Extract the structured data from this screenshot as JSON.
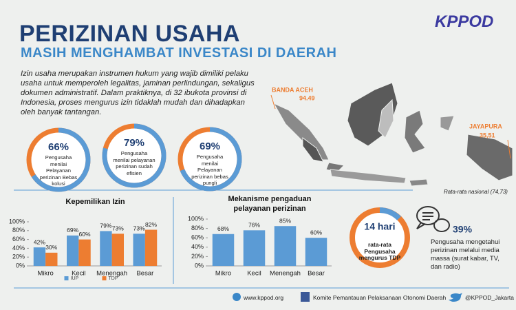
{
  "header": {
    "title": "PERIZINAN USAHA",
    "subtitle": "MASIH MENGHAMBAT INVESTASI DI DAERAH",
    "logo": "KPPOD"
  },
  "intro": "Izin usaha merupakan instrumen hukum yang wajib dimiliki pelaku usaha untuk memperoleh legalitas, jaminan perlindungan, sekaligus dokumen administratif. Dalam praktiknya, di 32 ibukota provinsi di Indonesia, proses mengurus izin tidaklah mudah dan dihadapkan oleh banyak tantangan.",
  "indicators": {
    "values": [
      66,
      79,
      69
    ],
    "value_labels": [
      "66%",
      "79%",
      "69%"
    ],
    "captions": [
      "Pengusaha menilai Pelayanan perizinan Bebas kolusi",
      "Pengusaha menilai pelayanan perizinan sudah efisien",
      "Pengusaha menilai Pelayanan perizinan bebas pungli"
    ]
  },
  "map": {
    "banda_aceh": {
      "name": "BANDA ACEH",
      "value": "94.49"
    },
    "jayapura": {
      "name": "JAYAPURA",
      "value": "35,51"
    },
    "note": "Rata-rata nasional (74,73)"
  },
  "chart_data": [
    {
      "type": "bar",
      "title": "Kepemilikan Izin",
      "categories": [
        "Mikro",
        "Kecil",
        "Menengah",
        "Besar"
      ],
      "series": [
        {
          "name": "IUP",
          "color": "#5b9bd5",
          "values": [
            42,
            69,
            79,
            73
          ],
          "value_labels": [
            "42%",
            "69%",
            "79%",
            "73%"
          ]
        },
        {
          "name": "TDP",
          "color": "#ed7d31",
          "values": [
            30,
            60,
            73,
            82
          ],
          "value_labels": [
            "30%",
            "60%",
            "73%",
            "82%"
          ]
        }
      ],
      "ylim": [
        0,
        100
      ],
      "yticks": [
        {
          "value": 0,
          "label": "0%"
        },
        {
          "value": 20,
          "label": "20%"
        },
        {
          "value": 40,
          "label": "40%"
        },
        {
          "value": 60,
          "label": "60%"
        },
        {
          "value": 80,
          "label": "80%"
        },
        {
          "value": 100,
          "label": "100%"
        }
      ]
    },
    {
      "type": "bar",
      "title": "Mekanisme pengaduan pelayanan perizinan",
      "categories": [
        "Mikro",
        "Kecil",
        "Menengah",
        "Besar"
      ],
      "values": [
        68,
        76,
        85,
        60
      ],
      "value_labels": [
        "68%",
        "76%",
        "85%",
        "60%"
      ],
      "color": "#5b9bd5",
      "ylim": [
        0,
        100
      ],
      "yticks": [
        {
          "value": 0,
          "label": "0%"
        },
        {
          "value": 20,
          "label": "20%"
        },
        {
          "value": 40,
          "label": "40%"
        },
        {
          "value": 60,
          "label": "60%"
        },
        {
          "value": 80,
          "label": "80%"
        },
        {
          "value": 100,
          "label": "100%"
        }
      ]
    }
  ],
  "tdp": {
    "days": "14 hari",
    "caption": "rata-rata Pengusaha mengurus TDP"
  },
  "media": {
    "value": "39%",
    "caption": "Pengusaha mengetahui perizinan melalui media massa (surat kabar, TV, dan radio)"
  },
  "footer": {
    "website": "www.kppod.org",
    "facebook": "Komite Pemantauan Pelaksanaan Otonomi Daerah",
    "twitter": "@KPPOD_Jakarta"
  }
}
